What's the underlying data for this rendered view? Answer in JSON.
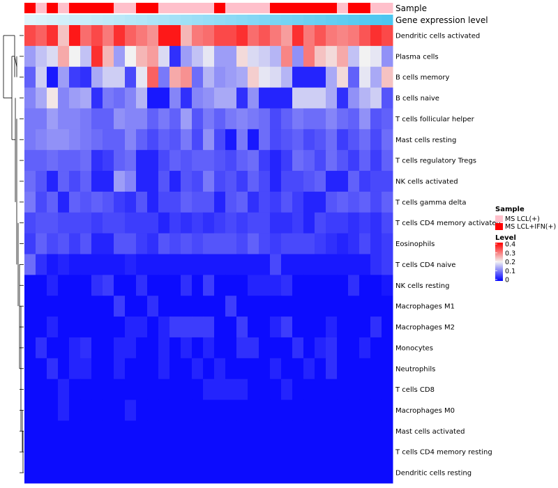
{
  "chart_data": {
    "type": "heatmap",
    "annotation_rows": [
      "Sample",
      "Gene expression level"
    ],
    "row_labels": [
      "Dendritic cells activated",
      "Plasma cells",
      "B cells memory",
      "B cells naive",
      "T cells follicular helper",
      "Mast cells resting",
      "T cells regulatory  Tregs",
      "NK cells activated",
      "T cells gamma delta",
      "T cells CD4 memory activated",
      "Eosinophils",
      "T cells CD4 naive",
      "NK cells resting",
      "Macrophages M1",
      "Macrophages M2",
      "Monocytes",
      "Neutrophils",
      "T cells CD8",
      "Macrophages M0",
      "Mast cells activated",
      "T cells CD4 memory resting",
      "Dendritic cells resting"
    ],
    "sample_groups": [
      1,
      0,
      1,
      0,
      1,
      1,
      1,
      1,
      0,
      0,
      1,
      1,
      0,
      0,
      0,
      0,
      0,
      1,
      0,
      0,
      0,
      0,
      1,
      1,
      1,
      1,
      1,
      1,
      0,
      1,
      1,
      0,
      0
    ],
    "gene_expression_gradient": [
      "#e0f4fb",
      "#4cc6f0"
    ],
    "color_scale": {
      "min": 0,
      "max": 0.4,
      "stops": [
        [
          0,
          "#0000ff"
        ],
        [
          0.2,
          "#f2f2f2"
        ],
        [
          0.4,
          "#ff0000"
        ]
      ]
    },
    "values": [
      [
        0.34,
        0.32,
        0.36,
        0.24,
        0.38,
        0.31,
        0.34,
        0.3,
        0.36,
        0.32,
        0.3,
        0.28,
        0.38,
        0.38,
        0.25,
        0.3,
        0.31,
        0.34,
        0.34,
        0.36,
        0.31,
        0.33,
        0.3,
        0.27,
        0.36,
        0.3,
        0.33,
        0.3,
        0.29,
        0.3,
        0.33,
        0.36,
        0.34
      ],
      [
        0.13,
        0.16,
        0.18,
        0.26,
        0.2,
        0.16,
        0.36,
        0.25,
        0.13,
        0.2,
        0.25,
        0.27,
        0.18,
        0.04,
        0.13,
        0.16,
        0.19,
        0.13,
        0.13,
        0.22,
        0.18,
        0.17,
        0.15,
        0.29,
        0.12,
        0.3,
        0.24,
        0.22,
        0.26,
        0.16,
        0.2,
        0.19,
        0.12
      ],
      [
        0.08,
        0.17,
        0.02,
        0.13,
        0.05,
        0.04,
        0.14,
        0.17,
        0.17,
        0.06,
        0.19,
        0.32,
        0.1,
        0.26,
        0.28,
        0.09,
        0.15,
        0.12,
        0.13,
        0.14,
        0.23,
        0.19,
        0.18,
        0.15,
        0.03,
        0.03,
        0.03,
        0.14,
        0.22,
        0.08,
        0.19,
        0.14,
        0.24
      ],
      [
        0.11,
        0.14,
        0.21,
        0.11,
        0.13,
        0.14,
        0.04,
        0.1,
        0.09,
        0.11,
        0.15,
        0.02,
        0.02,
        0.11,
        0.04,
        0.11,
        0.12,
        0.14,
        0.14,
        0.04,
        0.12,
        0.03,
        0.03,
        0.03,
        0.17,
        0.17,
        0.17,
        0.14,
        0.04,
        0.12,
        0.15,
        0.17,
        0.07
      ],
      [
        0.1,
        0.1,
        0.13,
        0.11,
        0.11,
        0.1,
        0.08,
        0.08,
        0.12,
        0.11,
        0.11,
        0.08,
        0.1,
        0.08,
        0.13,
        0.07,
        0.1,
        0.08,
        0.1,
        0.11,
        0.1,
        0.09,
        0.06,
        0.08,
        0.1,
        0.09,
        0.09,
        0.11,
        0.09,
        0.08,
        0.12,
        0.07,
        0.08
      ],
      [
        0.1,
        0.11,
        0.12,
        0.12,
        0.11,
        0.1,
        0.09,
        0.08,
        0.08,
        0.11,
        0.08,
        0.06,
        0.08,
        0.07,
        0.1,
        0.06,
        0.12,
        0.06,
        0.02,
        0.1,
        0.02,
        0.09,
        0.06,
        0.07,
        0.08,
        0.06,
        0.07,
        0.09,
        0.05,
        0.07,
        0.09,
        0.06,
        0.09
      ],
      [
        0.08,
        0.08,
        0.09,
        0.08,
        0.08,
        0.09,
        0.04,
        0.05,
        0.08,
        0.09,
        0.03,
        0.03,
        0.06,
        0.08,
        0.07,
        0.08,
        0.08,
        0.07,
        0.06,
        0.08,
        0.09,
        0.05,
        0.03,
        0.05,
        0.09,
        0.08,
        0.06,
        0.09,
        0.07,
        0.05,
        0.08,
        0.05,
        0.08
      ],
      [
        0.09,
        0.07,
        0.03,
        0.08,
        0.06,
        0.08,
        0.03,
        0.03,
        0.13,
        0.11,
        0.03,
        0.03,
        0.07,
        0.03,
        0.07,
        0.06,
        0.1,
        0.06,
        0.07,
        0.05,
        0.08,
        0.06,
        0.03,
        0.06,
        0.06,
        0.07,
        0.08,
        0.03,
        0.03,
        0.08,
        0.05,
        0.06,
        0.06
      ],
      [
        0.1,
        0.06,
        0.08,
        0.03,
        0.08,
        0.07,
        0.08,
        0.07,
        0.05,
        0.04,
        0.07,
        0.03,
        0.06,
        0.06,
        0.08,
        0.07,
        0.07,
        0.03,
        0.07,
        0.08,
        0.04,
        0.06,
        0.05,
        0.07,
        0.05,
        0.03,
        0.03,
        0.07,
        0.08,
        0.07,
        0.08,
        0.06,
        0.08
      ],
      [
        0.06,
        0.07,
        0.07,
        0.06,
        0.06,
        0.06,
        0.05,
        0.06,
        0.06,
        0.05,
        0.05,
        0.05,
        0.03,
        0.05,
        0.04,
        0.05,
        0.04,
        0.05,
        0.06,
        0.05,
        0.06,
        0.06,
        0.04,
        0.04,
        0.05,
        0.03,
        0.06,
        0.05,
        0.05,
        0.04,
        0.05,
        0.04,
        0.06
      ],
      [
        0.05,
        0.08,
        0.06,
        0.07,
        0.05,
        0.07,
        0.03,
        0.03,
        0.07,
        0.07,
        0.05,
        0.04,
        0.07,
        0.06,
        0.07,
        0.06,
        0.07,
        0.07,
        0.07,
        0.06,
        0.08,
        0.06,
        0.05,
        0.06,
        0.06,
        0.06,
        0.05,
        0.04,
        0.03,
        0.04,
        0.06,
        0.04,
        0.05
      ],
      [
        0.09,
        0.04,
        0.02,
        0.03,
        0.02,
        0.02,
        0.02,
        0.02,
        0.02,
        0.03,
        0.02,
        0.02,
        0.02,
        0.02,
        0.02,
        0.02,
        0.02,
        0.02,
        0.02,
        0.02,
        0.02,
        0.02,
        0.06,
        0.02,
        0.02,
        0.02,
        0.02,
        0.02,
        0.02,
        0.02,
        0.02,
        0.04,
        0.05
      ],
      [
        0.01,
        0.01,
        0.03,
        0.01,
        0.01,
        0.01,
        0.04,
        0.05,
        0.01,
        0.01,
        0.04,
        0.01,
        0.01,
        0.01,
        0.04,
        0.01,
        0.05,
        0.01,
        0.01,
        0.01,
        0.03,
        0.03,
        0.03,
        0.04,
        0.01,
        0.01,
        0.01,
        0.01,
        0.01,
        0.04,
        0.01,
        0.01,
        0.02
      ],
      [
        0.01,
        0.01,
        0.01,
        0.01,
        0.01,
        0.01,
        0.01,
        0.01,
        0.05,
        0.01,
        0.01,
        0.04,
        0.01,
        0.01,
        0.01,
        0.01,
        0.01,
        0.01,
        0.05,
        0.01,
        0.01,
        0.01,
        0.01,
        0.01,
        0.01,
        0.01,
        0.01,
        0.01,
        0.01,
        0.01,
        0.01,
        0.01,
        0.01
      ],
      [
        0.01,
        0.01,
        0.03,
        0.01,
        0.01,
        0.01,
        0.01,
        0.01,
        0.01,
        0.03,
        0.03,
        0.01,
        0.03,
        0.05,
        0.05,
        0.05,
        0.05,
        0.01,
        0.01,
        0.05,
        0.01,
        0.01,
        0.03,
        0.05,
        0.01,
        0.01,
        0.01,
        0.03,
        0.01,
        0.01,
        0.01,
        0.04,
        0.01
      ],
      [
        0.01,
        0.04,
        0.01,
        0.01,
        0.03,
        0.04,
        0.01,
        0.01,
        0.03,
        0.03,
        0.01,
        0.01,
        0.03,
        0.01,
        0.03,
        0.01,
        0.03,
        0.01,
        0.01,
        0.04,
        0.04,
        0.01,
        0.01,
        0.01,
        0.04,
        0.01,
        0.03,
        0.04,
        0.01,
        0.01,
        0.03,
        0.01,
        0.01
      ],
      [
        0.01,
        0.01,
        0.04,
        0.01,
        0.03,
        0.03,
        0.01,
        0.01,
        0.03,
        0.01,
        0.01,
        0.01,
        0.03,
        0.01,
        0.01,
        0.03,
        0.01,
        0.03,
        0.01,
        0.01,
        0.01,
        0.01,
        0.03,
        0.01,
        0.01,
        0.03,
        0.01,
        0.04,
        0.01,
        0.01,
        0.01,
        0.01,
        0.01
      ],
      [
        0.01,
        0.01,
        0.01,
        0.03,
        0.01,
        0.01,
        0.01,
        0.01,
        0.01,
        0.01,
        0.01,
        0.01,
        0.01,
        0.01,
        0.01,
        0.01,
        0.03,
        0.03,
        0.03,
        0.03,
        0.01,
        0.01,
        0.01,
        0.03,
        0.01,
        0.01,
        0.01,
        0.01,
        0.01,
        0.01,
        0.01,
        0.01,
        0.01
      ],
      [
        0.01,
        0.01,
        0.01,
        0.03,
        0.01,
        0.01,
        0.01,
        0.01,
        0.01,
        0.03,
        0.01,
        0.01,
        0.01,
        0.01,
        0.01,
        0.01,
        0.01,
        0.01,
        0.01,
        0.01,
        0.01,
        0.01,
        0.01,
        0.01,
        0.01,
        0.01,
        0.01,
        0.01,
        0.01,
        0.01,
        0.01,
        0.01,
        0.01
      ],
      [
        0.01,
        0.01,
        0.01,
        0.01,
        0.01,
        0.01,
        0.01,
        0.01,
        0.01,
        0.01,
        0.01,
        0.01,
        0.01,
        0.01,
        0.01,
        0.01,
        0.01,
        0.01,
        0.01,
        0.01,
        0.01,
        0.01,
        0.01,
        0.01,
        0.01,
        0.01,
        0.01,
        0.01,
        0.01,
        0.01,
        0.01,
        0.01,
        0.01
      ],
      [
        0.01,
        0.01,
        0.01,
        0.01,
        0.01,
        0.01,
        0.01,
        0.01,
        0.01,
        0.01,
        0.01,
        0.01,
        0.01,
        0.01,
        0.01,
        0.01,
        0.01,
        0.01,
        0.01,
        0.01,
        0.01,
        0.01,
        0.01,
        0.01,
        0.01,
        0.01,
        0.01,
        0.01,
        0.01,
        0.01,
        0.01,
        0.01,
        0.01
      ],
      [
        0.01,
        0.01,
        0.01,
        0.01,
        0.01,
        0.01,
        0.01,
        0.01,
        0.01,
        0.01,
        0.01,
        0.01,
        0.01,
        0.01,
        0.01,
        0.01,
        0.01,
        0.01,
        0.01,
        0.01,
        0.01,
        0.01,
        0.01,
        0.01,
        0.01,
        0.01,
        0.01,
        0.01,
        0.01,
        0.01,
        0.01,
        0.01,
        0.01
      ]
    ],
    "legend": {
      "sample_title": "Sample",
      "sample_entries": [
        {
          "label": "MS LCL(+)",
          "color": "#ffc0cb"
        },
        {
          "label": "MS LCL+IFN(+)",
          "color": "#ff0000"
        }
      ],
      "level_title": "Level",
      "level_ticks": [
        "0.4",
        "0.3",
        "0.2",
        "0.1",
        "0"
      ]
    },
    "placement": {
      "legend": "right",
      "dendrogram": "left"
    }
  }
}
